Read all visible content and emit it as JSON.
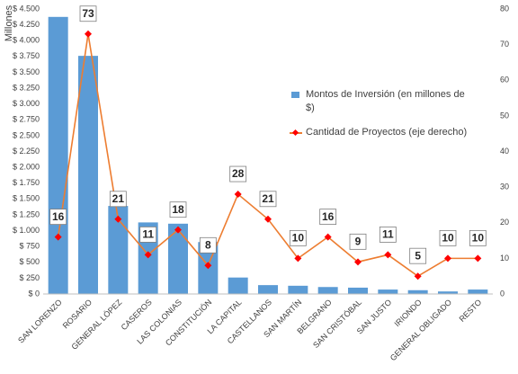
{
  "chart_data": {
    "type": "bar_line",
    "y_axis_title": "Millones",
    "categories": [
      "SAN LORENZO",
      "ROSARIO",
      "GENERAL LÓPEZ",
      "CASEROS",
      "LAS COLONIAS",
      "CONSTITUCIÓN",
      "LA CAPITAL",
      "CASTELLANOS",
      "SAN MARTÍN",
      "BELGRANO",
      "SAN CRISTÓBAL",
      "SAN JUSTO",
      "IRIONDO",
      "GENERAL OBLIGADO",
      "RESTO"
    ],
    "series": [
      {
        "name": "Montos de Inversión (en millones de $)",
        "type": "bar",
        "color": "#5B9BD5",
        "values": [
          4375,
          3760,
          1390,
          1130,
          1110,
          820,
          260,
          140,
          130,
          110,
          100,
          70,
          60,
          40,
          70
        ]
      },
      {
        "name": "Cantidad de Proyectos (eje derecho)",
        "type": "line",
        "axis": "y2",
        "color": "#ED7D31",
        "marker_color": "#FF0000",
        "values": [
          16,
          73,
          21,
          11,
          18,
          8,
          28,
          21,
          10,
          16,
          9,
          11,
          5,
          10,
          10
        ]
      }
    ],
    "ylim": [
      0,
      4500
    ],
    "yticks": [
      {
        "value": 0,
        "label": "$ 0"
      },
      {
        "value": 250,
        "label": "$ 250"
      },
      {
        "value": 500,
        "label": "$ 500"
      },
      {
        "value": 750,
        "label": "$ 750"
      },
      {
        "value": 1000,
        "label": "$ 1.000"
      },
      {
        "value": 1250,
        "label": "$ 1.250"
      },
      {
        "value": 1500,
        "label": "$ 1.500"
      },
      {
        "value": 1750,
        "label": "$ 1.750"
      },
      {
        "value": 2000,
        "label": "$ 2.000"
      },
      {
        "value": 2250,
        "label": "$ 2.250"
      },
      {
        "value": 2500,
        "label": "$ 2.500"
      },
      {
        "value": 2750,
        "label": "$ 2.750"
      },
      {
        "value": 3000,
        "label": "$ 3.000"
      },
      {
        "value": 3250,
        "label": "$ 3.250"
      },
      {
        "value": 3500,
        "label": "$ 3.500"
      },
      {
        "value": 3750,
        "label": "$ 3.750"
      },
      {
        "value": 4000,
        "label": "$ 4.000"
      },
      {
        "value": 4250,
        "label": "$ 4.250"
      },
      {
        "value": 4500,
        "label": "$ 4.500"
      }
    ],
    "y2lim": [
      0,
      80
    ],
    "y2ticks": [
      0,
      10,
      20,
      30,
      40,
      50,
      60,
      70,
      80
    ],
    "grid": false,
    "legend_position": "right"
  }
}
